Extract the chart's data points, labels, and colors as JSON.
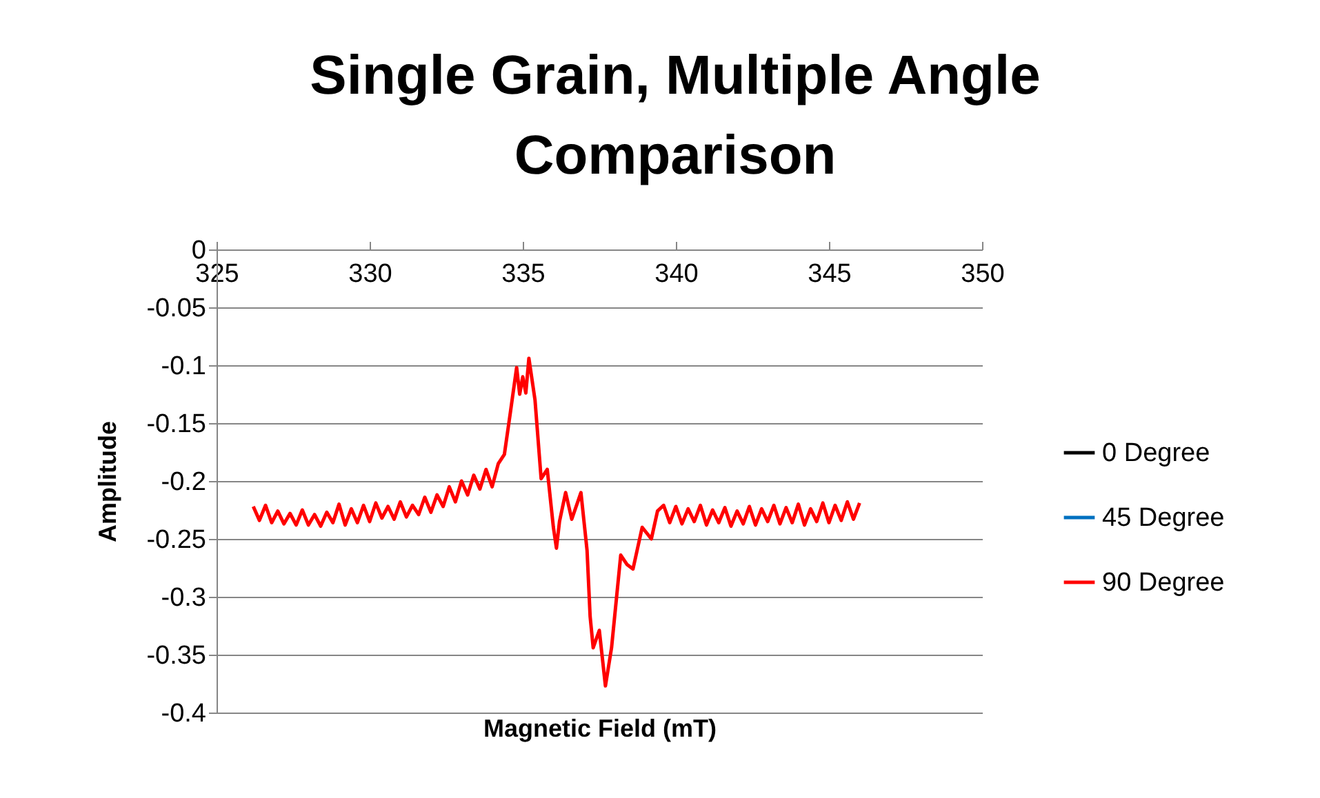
{
  "chart_data": {
    "type": "line",
    "title": "Single Grain, Multiple Angle Comparison",
    "xlabel": "Magnetic Field (mT)",
    "ylabel": "Amplitude",
    "x": [
      326.2,
      326.4,
      326.6,
      326.8,
      327.0,
      327.2,
      327.4,
      327.6,
      327.8,
      328.0,
      328.2,
      328.4,
      328.6,
      328.8,
      329.0,
      329.2,
      329.4,
      329.6,
      329.8,
      330.0,
      330.2,
      330.4,
      330.6,
      330.8,
      331.0,
      331.2,
      331.4,
      331.6,
      331.8,
      332.0,
      332.2,
      332.4,
      332.6,
      332.8,
      333.0,
      333.2,
      333.4,
      333.6,
      333.8,
      334.0,
      334.2,
      334.4,
      334.6,
      334.8,
      334.9,
      335.0,
      335.1,
      335.2,
      335.4,
      335.6,
      335.8,
      336.0,
      336.1,
      336.2,
      336.4,
      336.6,
      336.9,
      337.1,
      337.2,
      337.3,
      337.5,
      337.7,
      337.9,
      338.2,
      338.4,
      338.6,
      338.9,
      339.2,
      339.4,
      339.6,
      339.8,
      340.0,
      340.2,
      340.4,
      340.6,
      340.8,
      341.0,
      341.2,
      341.4,
      341.6,
      341.8,
      342.0,
      342.2,
      342.4,
      342.6,
      342.8,
      343.0,
      343.2,
      343.4,
      343.6,
      343.8,
      344.0,
      344.2,
      344.4,
      344.6,
      344.8,
      345.0,
      345.2,
      345.4,
      345.6,
      345.8,
      346.0
    ],
    "series": [
      {
        "name": "0 Degree",
        "color": "#000000",
        "values": [
          null,
          null,
          null,
          null,
          null,
          null,
          null,
          null,
          null,
          null,
          null,
          null,
          null,
          null,
          null,
          null,
          null,
          null,
          null,
          null,
          null,
          null,
          null,
          null,
          null,
          null,
          null,
          null,
          null,
          null,
          null,
          null,
          null,
          null,
          null,
          null,
          null,
          null,
          null,
          null,
          null,
          null,
          null,
          null,
          null,
          null,
          null,
          null,
          null,
          null,
          null,
          null,
          null,
          null,
          null,
          null,
          null,
          null,
          null,
          null,
          null,
          null,
          null,
          null,
          null,
          null,
          null,
          null,
          null,
          null,
          null,
          null,
          null,
          null,
          null,
          null,
          null,
          null,
          null,
          null,
          null,
          null,
          null,
          null,
          null,
          null,
          null,
          null,
          null,
          null,
          null,
          null,
          null,
          null,
          null,
          null,
          null,
          null,
          null,
          null,
          null,
          null
        ]
      },
      {
        "name": "45 Degree",
        "color": "#0070c0",
        "values": [
          null,
          null,
          null,
          null,
          null,
          null,
          null,
          null,
          null,
          null,
          null,
          null,
          null,
          null,
          null,
          null,
          null,
          null,
          null,
          null,
          null,
          null,
          null,
          null,
          null,
          null,
          null,
          null,
          null,
          null,
          null,
          null,
          null,
          null,
          null,
          null,
          null,
          null,
          null,
          null,
          null,
          null,
          null,
          null,
          null,
          null,
          null,
          null,
          null,
          null,
          null,
          null,
          null,
          null,
          null,
          null,
          null,
          null,
          null,
          null,
          null,
          null,
          null,
          null,
          null,
          null,
          null,
          null,
          null,
          null,
          null,
          null,
          null,
          null,
          null,
          null,
          null,
          null,
          null,
          null,
          null,
          null,
          null,
          null,
          null,
          null,
          null,
          null,
          null,
          null,
          null,
          null,
          null,
          null,
          null,
          null,
          null,
          null,
          null,
          null,
          null,
          null
        ]
      },
      {
        "name": "90 Degree",
        "color": "#ff0000",
        "values": [
          -0.222,
          -0.234,
          -0.221,
          -0.236,
          -0.226,
          -0.237,
          -0.228,
          -0.238,
          -0.225,
          -0.238,
          -0.229,
          -0.239,
          -0.227,
          -0.236,
          -0.22,
          -0.238,
          -0.224,
          -0.236,
          -0.221,
          -0.235,
          -0.219,
          -0.232,
          -0.222,
          -0.233,
          -0.218,
          -0.231,
          -0.221,
          -0.229,
          -0.214,
          -0.227,
          -0.212,
          -0.222,
          -0.205,
          -0.218,
          -0.2,
          -0.212,
          -0.195,
          -0.207,
          -0.19,
          -0.205,
          -0.185,
          -0.177,
          -0.14,
          -0.102,
          -0.125,
          -0.11,
          -0.124,
          -0.094,
          -0.13,
          -0.198,
          -0.19,
          -0.24,
          -0.258,
          -0.235,
          -0.21,
          -0.233,
          -0.21,
          -0.26,
          -0.317,
          -0.344,
          -0.329,
          -0.377,
          -0.344,
          -0.264,
          -0.272,
          -0.276,
          -0.24,
          -0.25,
          -0.226,
          -0.221,
          -0.236,
          -0.222,
          -0.237,
          -0.224,
          -0.235,
          -0.221,
          -0.238,
          -0.225,
          -0.236,
          -0.223,
          -0.239,
          -0.226,
          -0.237,
          -0.222,
          -0.238,
          -0.224,
          -0.235,
          -0.221,
          -0.237,
          -0.223,
          -0.236,
          -0.22,
          -0.238,
          -0.224,
          -0.235,
          -0.219,
          -0.236,
          -0.221,
          -0.234,
          -0.218,
          -0.233,
          -0.219
        ]
      }
    ],
    "xlim": [
      325,
      350
    ],
    "xticks": [
      325,
      330,
      335,
      340,
      345,
      350
    ],
    "ylim": [
      -0.4,
      0
    ],
    "yticks": [
      0,
      -0.05,
      -0.1,
      -0.15,
      -0.2,
      -0.25,
      -0.3,
      -0.35,
      -0.4
    ],
    "grid": "y",
    "legend": "right",
    "marker": "none",
    "line_style": "solid"
  }
}
